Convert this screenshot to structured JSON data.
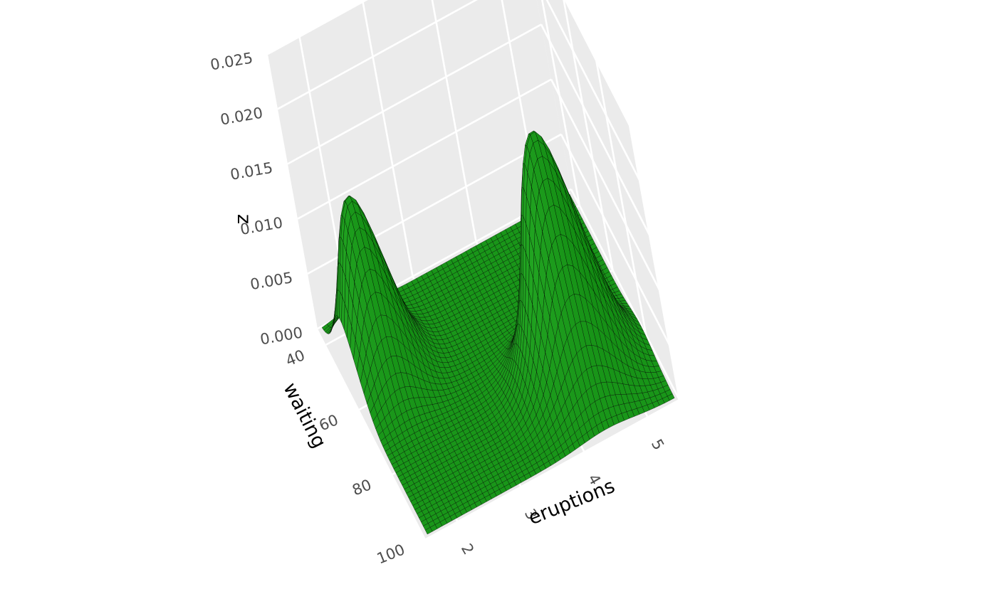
{
  "chart_data": {
    "type": "surface",
    "title": "",
    "xlabel": "eruptions",
    "ylabel": "waiting",
    "zlabel": "z",
    "xlim": [
      1.5,
      5.5
    ],
    "ylim": [
      35,
      100
    ],
    "zlim": [
      0,
      0.025
    ],
    "xticks": [
      "2",
      "3",
      "4",
      "5"
    ],
    "yticks": [
      "40",
      "60",
      "80",
      "100"
    ],
    "zticks": [
      "0.000",
      "0.005",
      "0.010",
      "0.015",
      "0.020",
      "0.025"
    ],
    "grid": true,
    "surface_color": "#1f9f1f",
    "mesh_color": "#000000",
    "pane_color": "#ebebeb",
    "peaks": [
      {
        "eruptions": 2.0,
        "waiting": 54,
        "z": 0.016
      },
      {
        "eruptions": 4.4,
        "waiting": 80,
        "z": 0.022
      }
    ]
  }
}
